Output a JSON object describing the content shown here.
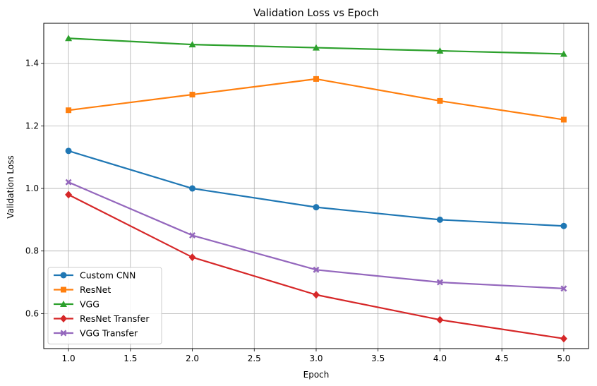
{
  "chart_data": {
    "type": "line",
    "title": "Validation Loss vs Epoch",
    "xlabel": "Epoch",
    "ylabel": "Validation Loss",
    "x": [
      1,
      2,
      3,
      4,
      5
    ],
    "xlim": [
      0.8,
      5.2
    ],
    "ylim": [
      0.488,
      1.528
    ],
    "xticks": [
      "1.0",
      "1.5",
      "2.0",
      "2.5",
      "3.0",
      "3.5",
      "4.0",
      "4.5",
      "5.0"
    ],
    "yticks": [
      "0.6",
      "0.8",
      "1.0",
      "1.2",
      "1.4"
    ],
    "grid": true,
    "legend_position": "lower-left",
    "series": [
      {
        "name": "Custom CNN",
        "color": "#1f77b4",
        "marker": "circle",
        "values": [
          1.12,
          1.0,
          0.94,
          0.9,
          0.88
        ]
      },
      {
        "name": "ResNet",
        "color": "#ff7f0e",
        "marker": "square",
        "values": [
          1.25,
          1.3,
          1.35,
          1.28,
          1.22
        ]
      },
      {
        "name": "VGG",
        "color": "#2ca02c",
        "marker": "triangle",
        "values": [
          1.48,
          1.46,
          1.45,
          1.44,
          1.43
        ]
      },
      {
        "name": "ResNet Transfer",
        "color": "#d62728",
        "marker": "diamond",
        "values": [
          0.98,
          0.78,
          0.66,
          0.58,
          0.52
        ]
      },
      {
        "name": "VGG Transfer",
        "color": "#9467bd",
        "marker": "x-filled",
        "values": [
          1.02,
          0.85,
          0.74,
          0.7,
          0.68
        ]
      }
    ]
  }
}
